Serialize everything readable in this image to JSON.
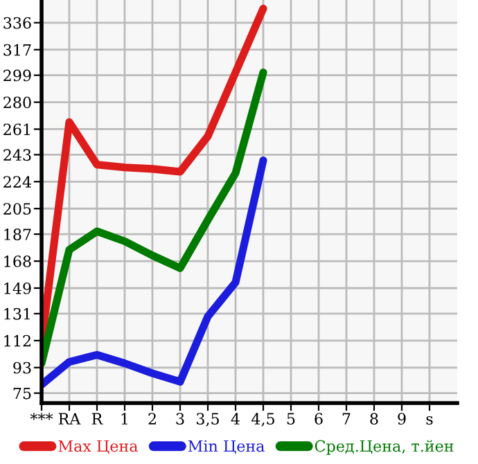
{
  "chart_data": {
    "type": "line",
    "categories": [
      "***",
      "RA",
      "R",
      "1",
      "2",
      "3",
      "3,5",
      "4",
      "4,5",
      "5",
      "6",
      "7",
      "8",
      "9",
      "s"
    ],
    "series": [
      {
        "name": "Max Цена",
        "color": "#dd1c1c",
        "values": [
          110,
          266,
          236,
          234,
          233,
          231,
          256,
          301,
          346,
          null,
          null,
          null,
          null,
          null,
          null
        ]
      },
      {
        "name": "Min Цена",
        "color": "#1c1cdd",
        "values": [
          81,
          97,
          102,
          96,
          89,
          83,
          129,
          153,
          239,
          null,
          null,
          null,
          null,
          null,
          null
        ]
      },
      {
        "name": "Сред.Цена, т.йен",
        "color": "#007a00",
        "values": [
          96,
          176,
          189,
          182,
          172,
          163,
          197,
          230,
          301,
          null,
          null,
          null,
          null,
          null,
          null
        ]
      }
    ],
    "ylim": [
      68,
      352
    ],
    "yticks": [
      75,
      93,
      112,
      131,
      149,
      168,
      187,
      205,
      224,
      243,
      261,
      280,
      299,
      317,
      336
    ],
    "grid": true,
    "legend": "bottom",
    "marker": "none",
    "line_style": "solid"
  }
}
